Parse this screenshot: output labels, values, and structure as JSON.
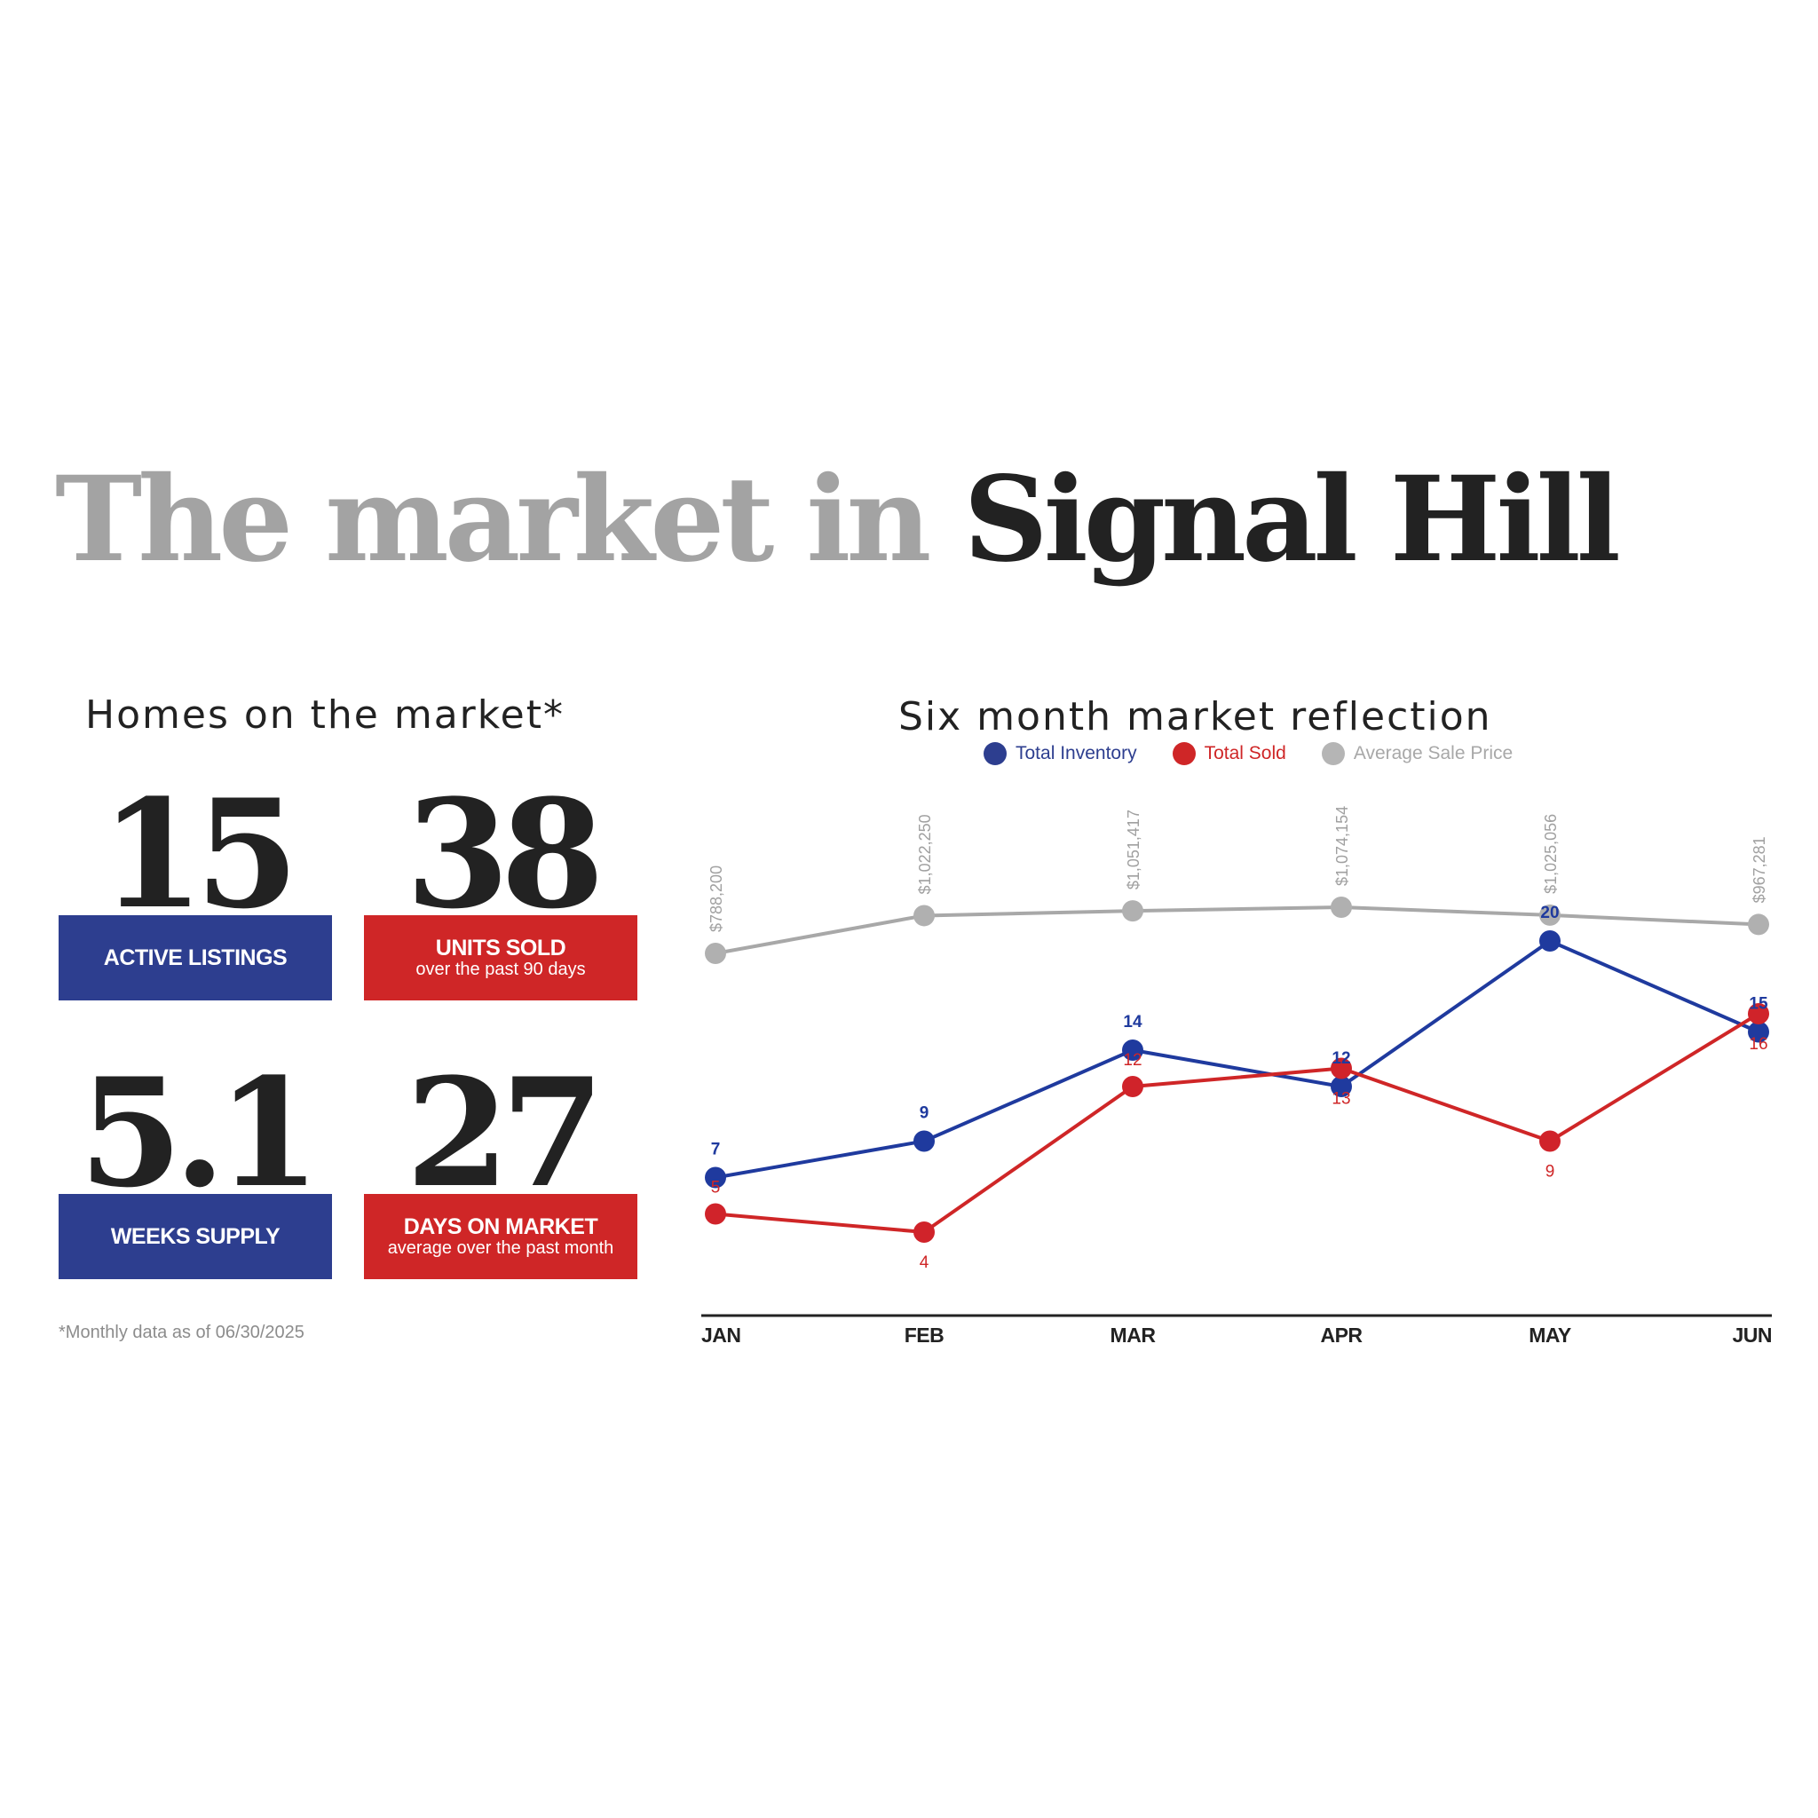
{
  "title": {
    "part1": "The market in",
    "part2": "Signal Hill"
  },
  "homes": {
    "heading": "Homes on the market*",
    "stats": [
      {
        "value": "15",
        "label": "ACTIVE LISTINGS",
        "sub": "",
        "color": "#2d3e8f"
      },
      {
        "value": "38",
        "label": "UNITS SOLD",
        "sub": "over the past 90 days",
        "color": "#cf2627"
      },
      {
        "value": "5.1",
        "label": "WEEKS SUPPLY",
        "sub": "",
        "color": "#2d3e8f"
      },
      {
        "value": "27",
        "label": "DAYS ON MARKET",
        "sub": "average over the past month",
        "color": "#cf2627"
      }
    ],
    "footnote": "*Monthly data as of 06/30/2025"
  },
  "chart_title": "Six month market reflection",
  "chart_data": {
    "type": "line",
    "categories": [
      "JAN",
      "FEB",
      "MAR",
      "APR",
      "MAY",
      "JUN"
    ],
    "series": [
      {
        "name": "Total Inventory",
        "color": "#1f3a9e",
        "values": [
          7,
          9,
          14,
          12,
          20,
          15
        ],
        "labels": [
          "7",
          "9",
          "14",
          "12",
          "20",
          "15"
        ]
      },
      {
        "name": "Total Sold",
        "color": "#cf2627",
        "values": [
          5,
          4,
          12,
          13,
          9,
          16
        ],
        "labels": [
          "5",
          "4",
          "12",
          "13",
          "9",
          "16"
        ]
      },
      {
        "name": "Average Sale Price",
        "color": "#a8a8a8",
        "values": [
          788200,
          1022250,
          1051417,
          1074154,
          1025056,
          967281
        ],
        "labels": [
          "$788,200",
          "$1,022,250",
          "$1,051,417",
          "$1,074,154",
          "$1,025,056",
          "$967,281"
        ]
      }
    ],
    "legend": "top-center",
    "grid": false
  }
}
